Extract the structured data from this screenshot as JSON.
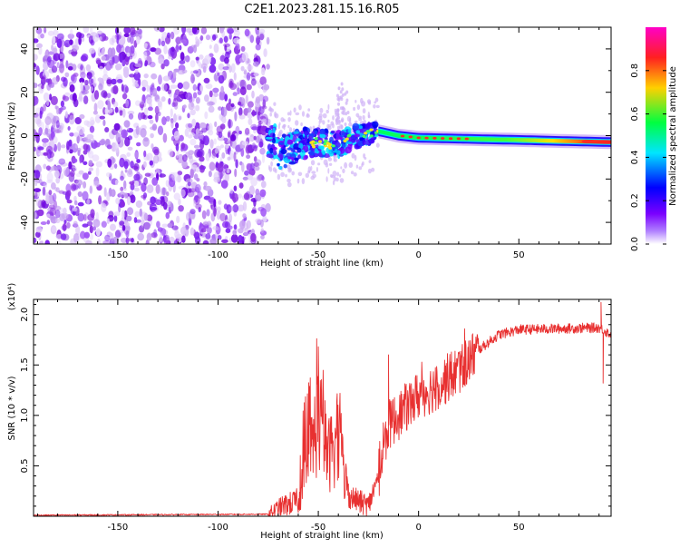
{
  "title": "C2E1.2023.281.15.16.R05",
  "colors": {
    "snr_line": "#e83030",
    "scatter_noise": "#8a2be2",
    "scatter_light": "#c9a5f2",
    "band_core": "#ff2a2a",
    "colormap": [
      "#ffffff",
      "#7a00ff",
      "#0000ff",
      "#00e5ff",
      "#00ff40",
      "#ffd000",
      "#ff2020",
      "#ff00c8"
    ]
  },
  "chart_data": [
    {
      "type": "heatmap",
      "title": "C2E1.2023.281.15.16.R05",
      "xlabel": "Height of straight line (km)",
      "ylabel": "Frequency (Hz)",
      "xlim": [
        -192,
        96
      ],
      "ylim": [
        -50,
        50
      ],
      "x_ticks": [
        -150,
        -100,
        -50,
        0,
        50
      ],
      "y_ticks": [
        -40,
        -20,
        0,
        20,
        40
      ],
      "colorbar": {
        "label": "Normalized spectral amplitude",
        "range": [
          0,
          1
        ],
        "ticks": [
          "0.0",
          "0.2",
          "0.4",
          "0.6",
          "0.8"
        ],
        "tick_values": [
          0,
          0.2,
          0.4,
          0.6,
          0.8
        ]
      },
      "regions": [
        {
          "name": "noise",
          "x": [
            -192,
            -75
          ],
          "freq_range": [
            -50,
            50
          ],
          "amplitude": 0.05
        },
        {
          "name": "turbulent",
          "x": [
            -75,
            -20
          ],
          "freq_center": 0,
          "freq_spread": 8,
          "amplitude": 0.2
        },
        {
          "name": "signal",
          "x": [
            -20,
            96
          ],
          "freq_center": -2,
          "freq_spread": 2,
          "amplitude": 0.9
        }
      ],
      "band_center": [
        {
          "x": -70,
          "y": -8
        },
        {
          "x": -55,
          "y": -3
        },
        {
          "x": -40,
          "y": -4
        },
        {
          "x": -30,
          "y": 0
        },
        {
          "x": -20,
          "y": 2
        },
        {
          "x": -10,
          "y": 0
        },
        {
          "x": 0,
          "y": -1
        },
        {
          "x": 50,
          "y": -2
        },
        {
          "x": 96,
          "y": -3
        }
      ]
    },
    {
      "type": "line",
      "xlabel": "Height of straight line (km)",
      "ylabel": "SNR (10 * v/v)",
      "yscale_label": "(x10⁴)",
      "xlim": [
        -192,
        96
      ],
      "ylim": [
        0,
        2.15
      ],
      "x_ticks": [
        -150,
        -100,
        -50,
        0,
        50
      ],
      "y_ticks": [
        0.5,
        1.0,
        1.5,
        2.0
      ],
      "y_tick_labels": [
        "0.5",
        "1.0",
        "1.5",
        "2.0"
      ],
      "series": [
        {
          "name": "",
          "points": [
            {
              "x": -192,
              "y": 0.01
            },
            {
              "x": -75,
              "y": 0.02
            },
            {
              "x": -68,
              "y": 0.1
            },
            {
              "x": -60,
              "y": 0.15
            },
            {
              "x": -55,
              "y": 0.5
            },
            {
              "x": -50,
              "y": 1.0
            },
            {
              "x": -45,
              "y": 0.6
            },
            {
              "x": -40,
              "y": 0.8
            },
            {
              "x": -35,
              "y": 0.2
            },
            {
              "x": -25,
              "y": 0.1
            },
            {
              "x": -20,
              "y": 0.4
            },
            {
              "x": -15,
              "y": 0.9
            },
            {
              "x": -10,
              "y": 1.0
            },
            {
              "x": -5,
              "y": 1.1
            },
            {
              "x": 0,
              "y": 1.2
            },
            {
              "x": 10,
              "y": 1.3
            },
            {
              "x": 20,
              "y": 1.45
            },
            {
              "x": 30,
              "y": 1.65
            },
            {
              "x": 40,
              "y": 1.8
            },
            {
              "x": 50,
              "y": 1.85
            },
            {
              "x": 70,
              "y": 1.86
            },
            {
              "x": 90,
              "y": 1.87
            },
            {
              "x": 96,
              "y": 1.8
            }
          ],
          "features": [
            {
              "x": -50,
              "y": 1.68,
              "kind": "peak"
            },
            {
              "x": -15,
              "y": 1.6,
              "kind": "peak"
            },
            {
              "x": 91,
              "y": 2.12,
              "kind": "peak"
            },
            {
              "x": 92,
              "y": 1.32,
              "kind": "dip"
            }
          ]
        }
      ]
    }
  ]
}
